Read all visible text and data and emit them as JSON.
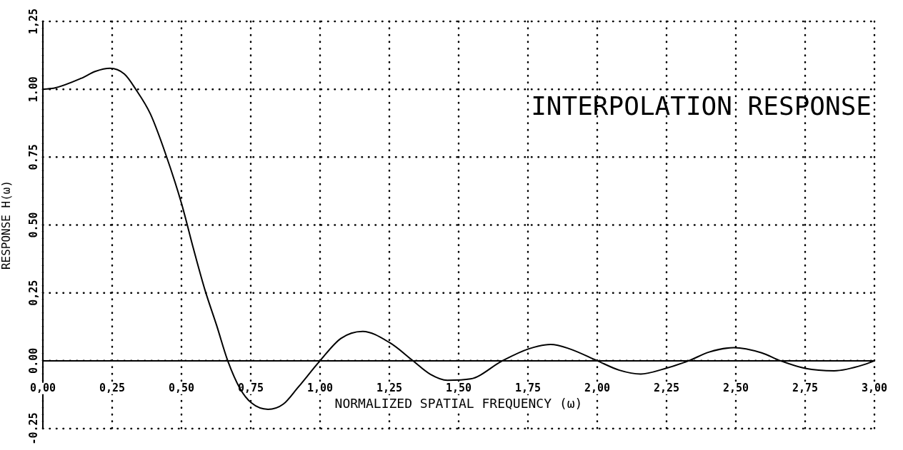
{
  "chart_data": {
    "type": "line",
    "title": "INTERPOLATION RESPONSE",
    "xlabel": "NORMALIZED SPATIAL FREQUENCY (ω)",
    "ylabel": "RESPONSE H(ω)",
    "x": [
      0,
      0.044,
      0.1375,
      0.19,
      0.242,
      0.294,
      0.335,
      0.3875,
      0.44,
      0.5,
      0.544,
      0.585,
      0.627,
      0.667,
      0.71,
      0.752,
      0.8125,
      0.867,
      0.919,
      1.0,
      1.075,
      1.153,
      1.252,
      1.335,
      1.398,
      1.459,
      1.543,
      1.658,
      1.753,
      1.832,
      1.9,
      2.0,
      2.08,
      2.157,
      2.241,
      2.33,
      2.404,
      2.493,
      2.593,
      2.661,
      2.75,
      2.855,
      2.97,
      3.0
    ],
    "series": [
      {
        "color": "#000000",
        "values": [
          1.0,
          1.005,
          1.04,
          1.066,
          1.077,
          1.056,
          1.0,
          0.91,
          0.77,
          0.58,
          0.41,
          0.26,
          0.13,
          0,
          -0.1,
          -0.155,
          -0.179,
          -0.16,
          -0.1,
          0,
          0.082,
          0.108,
          0.066,
          0,
          -0.05,
          -0.072,
          -0.067,
          0,
          0.044,
          0.06,
          0.044,
          0,
          -0.035,
          -0.049,
          -0.03,
          0,
          0.032,
          0.048,
          0.029,
          0,
          -0.028,
          -0.037,
          -0.012,
          0
        ]
      }
    ],
    "xlim": [
      0,
      3
    ],
    "ylim": [
      -0.25,
      1.25
    ],
    "xticks": [
      {
        "value": 0,
        "label": "0,00"
      },
      {
        "value": 0.25,
        "label": "0,25"
      },
      {
        "value": 0.5,
        "label": "0,50"
      },
      {
        "value": 0.75,
        "label": "0,75"
      },
      {
        "value": 1,
        "label": "1,00"
      },
      {
        "value": 1.25,
        "label": "1,25"
      },
      {
        "value": 1.5,
        "label": "1,50"
      },
      {
        "value": 1.75,
        "label": "1,75"
      },
      {
        "value": 2,
        "label": "2,00"
      },
      {
        "value": 2.25,
        "label": "2,25"
      },
      {
        "value": 2.5,
        "label": "2,50"
      },
      {
        "value": 2.75,
        "label": "2,75"
      },
      {
        "value": 3,
        "label": "3,00"
      }
    ],
    "yticks": [
      {
        "value": -0.25,
        "label": "-0.25"
      },
      {
        "value": 0,
        "label": "0.00"
      },
      {
        "value": 0.25,
        "label": "0,25"
      },
      {
        "value": 0.5,
        "label": "0.50"
      },
      {
        "value": 0.75,
        "label": "0.75"
      },
      {
        "value": 1,
        "label": "1.00"
      },
      {
        "value": 1.25,
        "label": "1,25"
      }
    ],
    "grid": true,
    "legend": false,
    "marker": "none",
    "line_style": "solid"
  }
}
